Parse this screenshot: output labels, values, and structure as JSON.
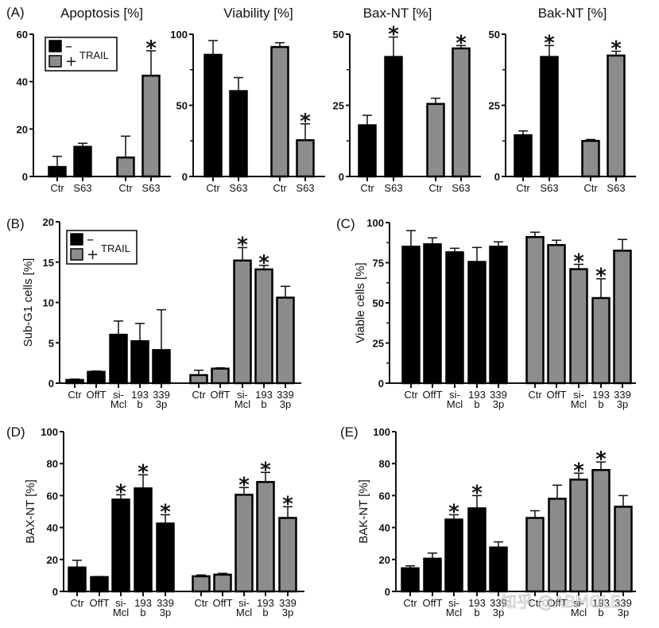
{
  "colors": {
    "minus": "#000000",
    "plus": "#8c8c8c",
    "axis": "#111111"
  },
  "watermark": "知乎 @ABMOLE",
  "chart_data": [
    {
      "id": "A1",
      "panel_label": "(A)",
      "type": "bar",
      "title": "Apoptosis [%]",
      "ylabel": "",
      "ylim": [
        0,
        60
      ],
      "yticks": [
        0,
        20,
        40,
        60
      ],
      "minor_ticks": [],
      "legend": {
        "entries": [
          {
            "symbol": "–",
            "group": "minus"
          },
          {
            "symbol": "+",
            "group": "plus"
          }
        ],
        "label": "TRAIL",
        "placement": "top-left"
      },
      "groups": [
        {
          "name": "minus",
          "categories": [
            "Ctr",
            "S63"
          ],
          "values": [
            4,
            12.5
          ],
          "errors": [
            4.5,
            1.5
          ],
          "significant": [
            false,
            false
          ]
        },
        {
          "name": "plus",
          "categories": [
            "Ctr",
            "S63"
          ],
          "values": [
            8,
            42.5
          ],
          "errors": [
            9,
            10.5
          ],
          "significant": [
            false,
            true
          ]
        }
      ]
    },
    {
      "id": "A2",
      "panel_label": "",
      "type": "bar",
      "title": "Viability [%]",
      "ylabel": "",
      "ylim": [
        0,
        100
      ],
      "yticks": [
        0,
        50,
        100
      ],
      "minor_ticks": [
        25,
        75
      ],
      "groups": [
        {
          "name": "minus",
          "categories": [
            "Ctr",
            "S63"
          ],
          "values": [
            85.5,
            60
          ],
          "errors": [
            10,
            9.5
          ],
          "significant": [
            false,
            false
          ]
        },
        {
          "name": "plus",
          "categories": [
            "Ctr",
            "S63"
          ],
          "values": [
            91,
            25.5
          ],
          "errors": [
            3,
            11.5
          ],
          "significant": [
            false,
            true
          ]
        }
      ]
    },
    {
      "id": "A3",
      "panel_label": "",
      "type": "bar",
      "title": "Bax-NT [%]",
      "ylabel": "",
      "ylim": [
        0,
        50
      ],
      "yticks": [
        0,
        25,
        50
      ],
      "minor_ticks": [
        12.5,
        37.5
      ],
      "groups": [
        {
          "name": "minus",
          "categories": [
            "Ctr",
            "S63"
          ],
          "values": [
            18,
            42
          ],
          "errors": [
            3.5,
            7
          ],
          "significant": [
            false,
            true
          ]
        },
        {
          "name": "plus",
          "categories": [
            "Ctr",
            "S63"
          ],
          "values": [
            25.5,
            45
          ],
          "errors": [
            2,
            1
          ],
          "significant": [
            false,
            true
          ]
        }
      ]
    },
    {
      "id": "A4",
      "panel_label": "",
      "type": "bar",
      "title": "Bak-NT [%]",
      "ylabel": "",
      "ylim": [
        0,
        50
      ],
      "yticks": [
        0,
        25,
        50
      ],
      "minor_ticks": [
        12.5,
        37.5
      ],
      "groups": [
        {
          "name": "minus",
          "categories": [
            "Ctr",
            "S63"
          ],
          "values": [
            14.5,
            42
          ],
          "errors": [
            1.5,
            4
          ],
          "significant": [
            false,
            true
          ]
        },
        {
          "name": "plus",
          "categories": [
            "Ctr",
            "S63"
          ],
          "values": [
            12.5,
            42.5
          ],
          "errors": [
            0.5,
            1.5
          ],
          "significant": [
            false,
            true
          ]
        }
      ]
    },
    {
      "id": "B",
      "panel_label": "(B)",
      "type": "bar",
      "title": "",
      "ylabel": "Sub-G1 cells [%]",
      "ylim": [
        0,
        20
      ],
      "yticks": [
        0,
        5,
        10,
        15,
        20
      ],
      "minor_ticks": [],
      "legend": {
        "entries": [
          {
            "symbol": "–",
            "group": "minus"
          },
          {
            "symbol": "+",
            "group": "plus"
          }
        ],
        "label": "TRAIL",
        "placement": "top-left"
      },
      "groups": [
        {
          "name": "minus",
          "categories": [
            "Ctr",
            "OffT",
            "si-|Mcl",
            "193|b",
            "339|3p"
          ],
          "values": [
            0.4,
            1.4,
            6,
            5.2,
            4.1
          ],
          "errors": [
            0.1,
            0.1,
            1.7,
            2.2,
            5
          ],
          "significant": [
            false,
            false,
            false,
            false,
            false
          ]
        },
        {
          "name": "plus",
          "categories": [
            "Ctr",
            "OffT",
            "si-|Mcl",
            "193|b",
            "339|3p"
          ],
          "values": [
            1,
            1.8,
            15.2,
            14.1,
            10.6
          ],
          "errors": [
            0.6,
            0.1,
            1.6,
            0.5,
            1.4
          ],
          "significant": [
            false,
            false,
            true,
            true,
            false
          ]
        }
      ]
    },
    {
      "id": "C",
      "panel_label": "(C)",
      "type": "bar",
      "title": "",
      "ylabel": "Viable cells [%]",
      "ylim": [
        0,
        100
      ],
      "yticks": [
        0,
        25,
        50,
        75,
        100
      ],
      "minor_ticks": [
        12.5,
        37.5,
        62.5,
        87.5
      ],
      "groups": [
        {
          "name": "minus",
          "categories": [
            "Ctr",
            "OffT",
            "si-|Mcl",
            "193|b",
            "339|3p"
          ],
          "values": [
            85,
            86.5,
            81.5,
            75.5,
            85
          ],
          "errors": [
            10,
            4,
            2.5,
            9,
            3
          ],
          "significant": [
            false,
            false,
            false,
            false,
            false
          ]
        },
        {
          "name": "plus",
          "categories": [
            "Ctr",
            "OffT",
            "si-|Mcl",
            "193|b",
            "339|3p"
          ],
          "values": [
            91,
            86,
            71,
            53,
            82.5
          ],
          "errors": [
            3,
            3,
            3,
            12,
            7
          ],
          "significant": [
            false,
            false,
            true,
            true,
            false
          ]
        }
      ]
    },
    {
      "id": "D",
      "panel_label": "(D)",
      "type": "bar",
      "title": "",
      "ylabel": "BAX-NT [%]",
      "ylim": [
        0,
        100
      ],
      "yticks": [
        0,
        20,
        40,
        60,
        80,
        100
      ],
      "minor_ticks": [],
      "groups": [
        {
          "name": "minus",
          "categories": [
            "Ctr",
            "OffT",
            "si-|Mcl",
            "193|b",
            "339|3p"
          ],
          "values": [
            15,
            9,
            57.5,
            64.5,
            42.5
          ],
          "errors": [
            4.5,
            0.3,
            3,
            8.5,
            5.5
          ],
          "significant": [
            false,
            false,
            true,
            true,
            true
          ]
        },
        {
          "name": "plus",
          "categories": [
            "Ctr",
            "OffT",
            "si-|Mcl",
            "193|b",
            "339|3p"
          ],
          "values": [
            9.5,
            10.5,
            60.5,
            68.5,
            46
          ],
          "errors": [
            0.8,
            0.8,
            4.5,
            6,
            7
          ],
          "significant": [
            false,
            false,
            true,
            true,
            true
          ]
        }
      ]
    },
    {
      "id": "E",
      "panel_label": "(E)",
      "type": "bar",
      "title": "",
      "ylabel": "BAK-NT [%]",
      "ylim": [
        0,
        100
      ],
      "yticks": [
        0,
        20,
        40,
        60,
        80,
        100
      ],
      "minor_ticks": [],
      "groups": [
        {
          "name": "minus",
          "categories": [
            "Ctr",
            "OffT",
            "si-|Mcl",
            "193|b",
            "339|3p"
          ],
          "values": [
            14.5,
            20.5,
            45,
            52,
            27.5
          ],
          "errors": [
            1.5,
            3.5,
            3,
            8,
            3.5
          ],
          "significant": [
            false,
            false,
            true,
            true,
            false
          ]
        },
        {
          "name": "plus",
          "categories": [
            "Ctr",
            "OffT",
            "si-|Mcl",
            "193|b",
            "339|3p"
          ],
          "values": [
            46,
            58,
            70,
            76,
            53
          ],
          "errors": [
            4.5,
            8.5,
            4,
            5,
            7
          ],
          "significant": [
            false,
            false,
            true,
            true,
            false
          ]
        }
      ]
    }
  ]
}
